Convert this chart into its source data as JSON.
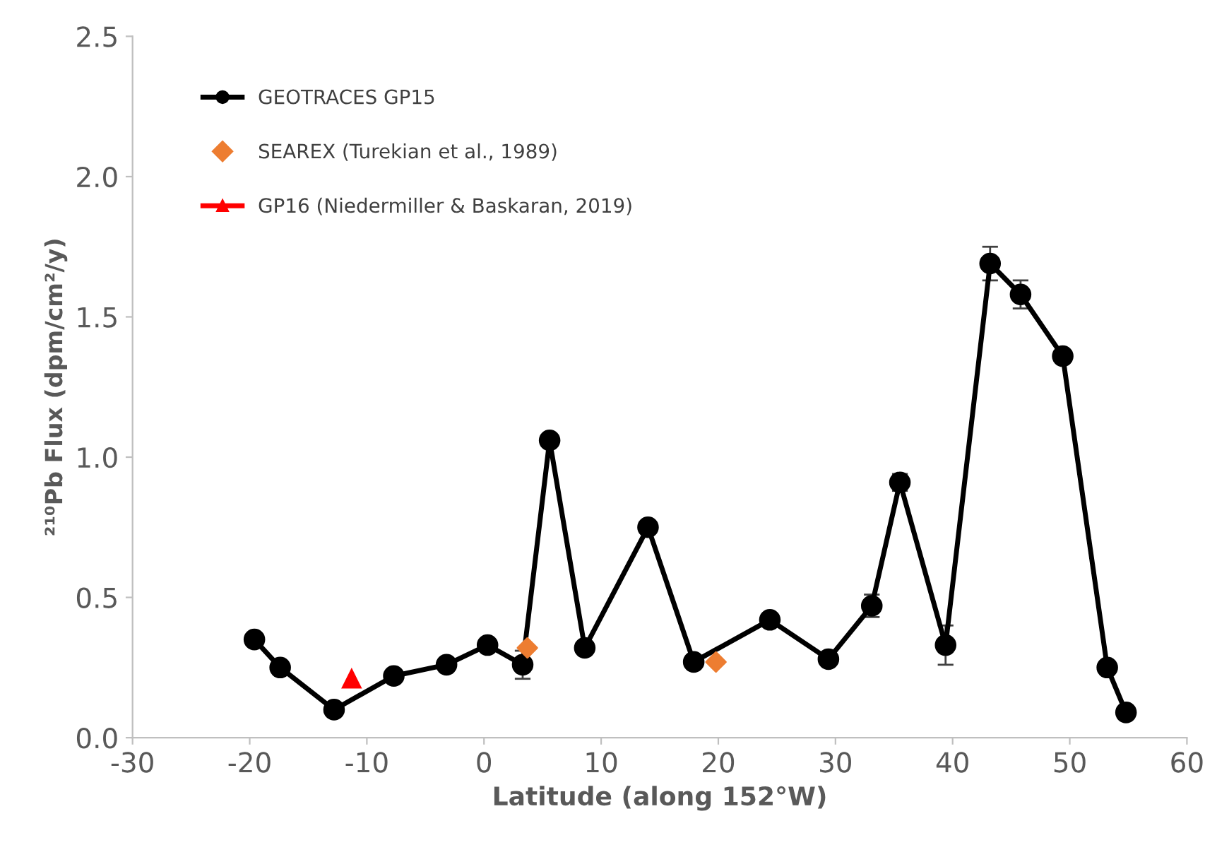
{
  "chart_data": {
    "type": "line",
    "xlabel": "Latitude (along 152°W)",
    "ylabel": "²¹⁰Pb Flux (dpm/cm²/y)",
    "xlim": [
      -30,
      60
    ],
    "xticks": [
      -30,
      -20,
      -10,
      0,
      10,
      20,
      30,
      40,
      50,
      60
    ],
    "ylim": [
      0,
      2.5
    ],
    "yticks": [
      {
        "value": 0,
        "label": "0.0"
      },
      {
        "value": 0.5,
        "label": "0.5"
      },
      {
        "value": 1.0,
        "label": "1.0"
      },
      {
        "value": 1.5,
        "label": "1.5"
      },
      {
        "value": 2.0,
        "label": "2.0"
      },
      {
        "value": 2.5,
        "label": "2.5"
      }
    ],
    "grid": false,
    "legend": "top left",
    "series": [
      {
        "name": "GEOTRACES GP15",
        "color": "#000000",
        "marker": "circle",
        "line_style": "solid",
        "x": [
          -19.6,
          -17.4,
          -12.8,
          -7.7,
          -3.2,
          0.3,
          3.3,
          5.6,
          8.6,
          14.0,
          17.9,
          24.4,
          29.4,
          33.1,
          35.5,
          39.4,
          43.2,
          45.8,
          49.4,
          53.2,
          54.8
        ],
        "values": [
          0.35,
          0.25,
          0.1,
          0.22,
          0.26,
          0.33,
          0.26,
          1.06,
          0.32,
          0.75,
          0.27,
          0.42,
          0.28,
          0.47,
          0.91,
          0.33,
          1.69,
          1.58,
          1.36,
          0.25,
          0.09
        ],
        "errors": [
          null,
          null,
          null,
          null,
          null,
          null,
          0.05,
          null,
          0.02,
          null,
          null,
          null,
          null,
          0.04,
          0.03,
          0.07,
          0.06,
          0.05,
          null,
          null,
          null
        ]
      },
      {
        "name": "SEAREX (Turekian et al., 1989)",
        "type": "scatter",
        "color": "#ed7d31",
        "marker": "diamond",
        "x": [
          3.7,
          19.8
        ],
        "values": [
          0.32,
          0.27
        ]
      },
      {
        "name": "GP16 (Niedermiller & Baskaran, 2019)",
        "color": "#ff0000",
        "marker": "triangle",
        "line_style": "solid",
        "x": [
          -11.3
        ],
        "values": [
          0.21
        ]
      }
    ]
  }
}
